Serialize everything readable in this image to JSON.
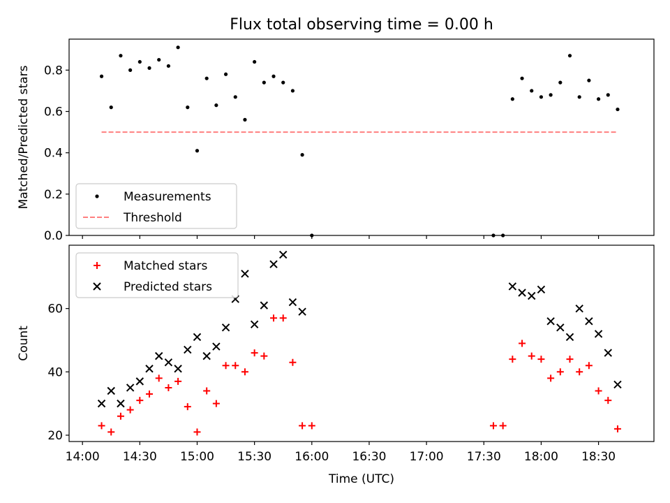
{
  "figure_title": "Flux total observing time = 0.00 h",
  "colors": {
    "measurement": "#000000",
    "threshold": "#ff7f7f",
    "matched": "#ff0000",
    "predicted": "#000000",
    "axes": "#000000"
  },
  "chart_data": [
    {
      "type": "scatter",
      "panel": "top",
      "ylabel": "Matched/Predicted stars",
      "xlabel": "",
      "ylim": [
        0,
        0.95
      ],
      "xlim": [
        "13:53",
        "18:59"
      ],
      "yticks": [
        0.0,
        0.2,
        0.4,
        0.6,
        0.8
      ],
      "ytick_labels": [
        "0.0",
        "0.2",
        "0.4",
        "0.6",
        "0.8"
      ],
      "grid": false,
      "legend": {
        "position": "lower-left",
        "entries": [
          "Measurements",
          "Threshold"
        ]
      },
      "series": [
        {
          "name": "Measurements",
          "marker": "dot",
          "x": [
            "14:10",
            "14:15",
            "14:20",
            "14:25",
            "14:30",
            "14:35",
            "14:40",
            "14:45",
            "14:50",
            "14:55",
            "15:00",
            "15:05",
            "15:10",
            "15:15",
            "15:20",
            "15:25",
            "15:30",
            "15:35",
            "15:40",
            "15:45",
            "15:50",
            "15:55",
            "16:00",
            "17:35",
            "17:40",
            "17:45",
            "17:50",
            "17:55",
            "18:00",
            "18:05",
            "18:10",
            "18:15",
            "18:20",
            "18:25",
            "18:30",
            "18:35",
            "18:40"
          ],
          "y": [
            0.77,
            0.62,
            0.87,
            0.8,
            0.84,
            0.81,
            0.85,
            0.82,
            0.91,
            0.62,
            0.41,
            0.76,
            0.63,
            0.78,
            0.67,
            0.56,
            0.84,
            0.74,
            0.77,
            0.74,
            0.7,
            0.39,
            0.0,
            0.0,
            0.0,
            0.66,
            0.76,
            0.7,
            0.67,
            0.68,
            0.74,
            0.87,
            0.67,
            0.75,
            0.66,
            0.68,
            0.61
          ]
        },
        {
          "name": "Threshold",
          "marker": "dashed-line",
          "x": [
            "14:10",
            "18:40"
          ],
          "y": [
            0.5,
            0.5
          ]
        }
      ]
    },
    {
      "type": "scatter",
      "panel": "bottom",
      "ylabel": "Count",
      "xlabel": "Time (UTC)",
      "ylim": [
        18,
        80
      ],
      "xlim": [
        "13:53",
        "18:59"
      ],
      "yticks": [
        20,
        40,
        60
      ],
      "ytick_labels": [
        "20",
        "40",
        "60"
      ],
      "xticks": [
        "14:00",
        "14:30",
        "15:00",
        "15:30",
        "16:00",
        "16:30",
        "17:00",
        "17:30",
        "18:00",
        "18:30"
      ],
      "xtick_labels": [
        "14:00",
        "14:30",
        "15:00",
        "15:30",
        "16:00",
        "16:30",
        "17:00",
        "17:30",
        "18:00",
        "18:30"
      ],
      "grid": false,
      "legend": {
        "position": "upper-left",
        "entries": [
          "Matched stars",
          "Predicted stars"
        ]
      },
      "series": [
        {
          "name": "Matched stars",
          "marker": "plus",
          "x": [
            "14:10",
            "14:15",
            "14:20",
            "14:25",
            "14:30",
            "14:35",
            "14:40",
            "14:45",
            "14:50",
            "14:55",
            "15:00",
            "15:05",
            "15:10",
            "15:15",
            "15:20",
            "15:25",
            "15:30",
            "15:35",
            "15:40",
            "15:45",
            "15:50",
            "15:55",
            "16:00",
            "17:35",
            "17:40",
            "17:45",
            "17:50",
            "17:55",
            "18:00",
            "18:05",
            "18:10",
            "18:15",
            "18:20",
            "18:25",
            "18:30",
            "18:35",
            "18:40"
          ],
          "y": [
            23,
            21,
            26,
            28,
            31,
            33,
            38,
            35,
            37,
            29,
            21,
            34,
            30,
            42,
            42,
            40,
            46,
            45,
            57,
            57,
            43,
            23,
            23,
            23,
            23,
            44,
            49,
            45,
            44,
            38,
            40,
            44,
            40,
            42,
            34,
            31,
            22
          ]
        },
        {
          "name": "Predicted stars",
          "marker": "x",
          "x": [
            "14:10",
            "14:15",
            "14:20",
            "14:25",
            "14:30",
            "14:35",
            "14:40",
            "14:45",
            "14:50",
            "14:55",
            "15:00",
            "15:05",
            "15:10",
            "15:15",
            "15:20",
            "15:25",
            "15:30",
            "15:35",
            "15:40",
            "15:45",
            "15:50",
            "15:55",
            "17:45",
            "17:50",
            "17:55",
            "18:00",
            "18:05",
            "18:10",
            "18:15",
            "18:20",
            "18:25",
            "18:30",
            "18:35",
            "18:40"
          ],
          "y": [
            30,
            34,
            30,
            35,
            37,
            41,
            45,
            43,
            41,
            47,
            51,
            45,
            48,
            54,
            63,
            71,
            55,
            61,
            74,
            77,
            62,
            59,
            67,
            65,
            64,
            66,
            56,
            54,
            51,
            60,
            56,
            52,
            46,
            36
          ]
        }
      ]
    }
  ]
}
